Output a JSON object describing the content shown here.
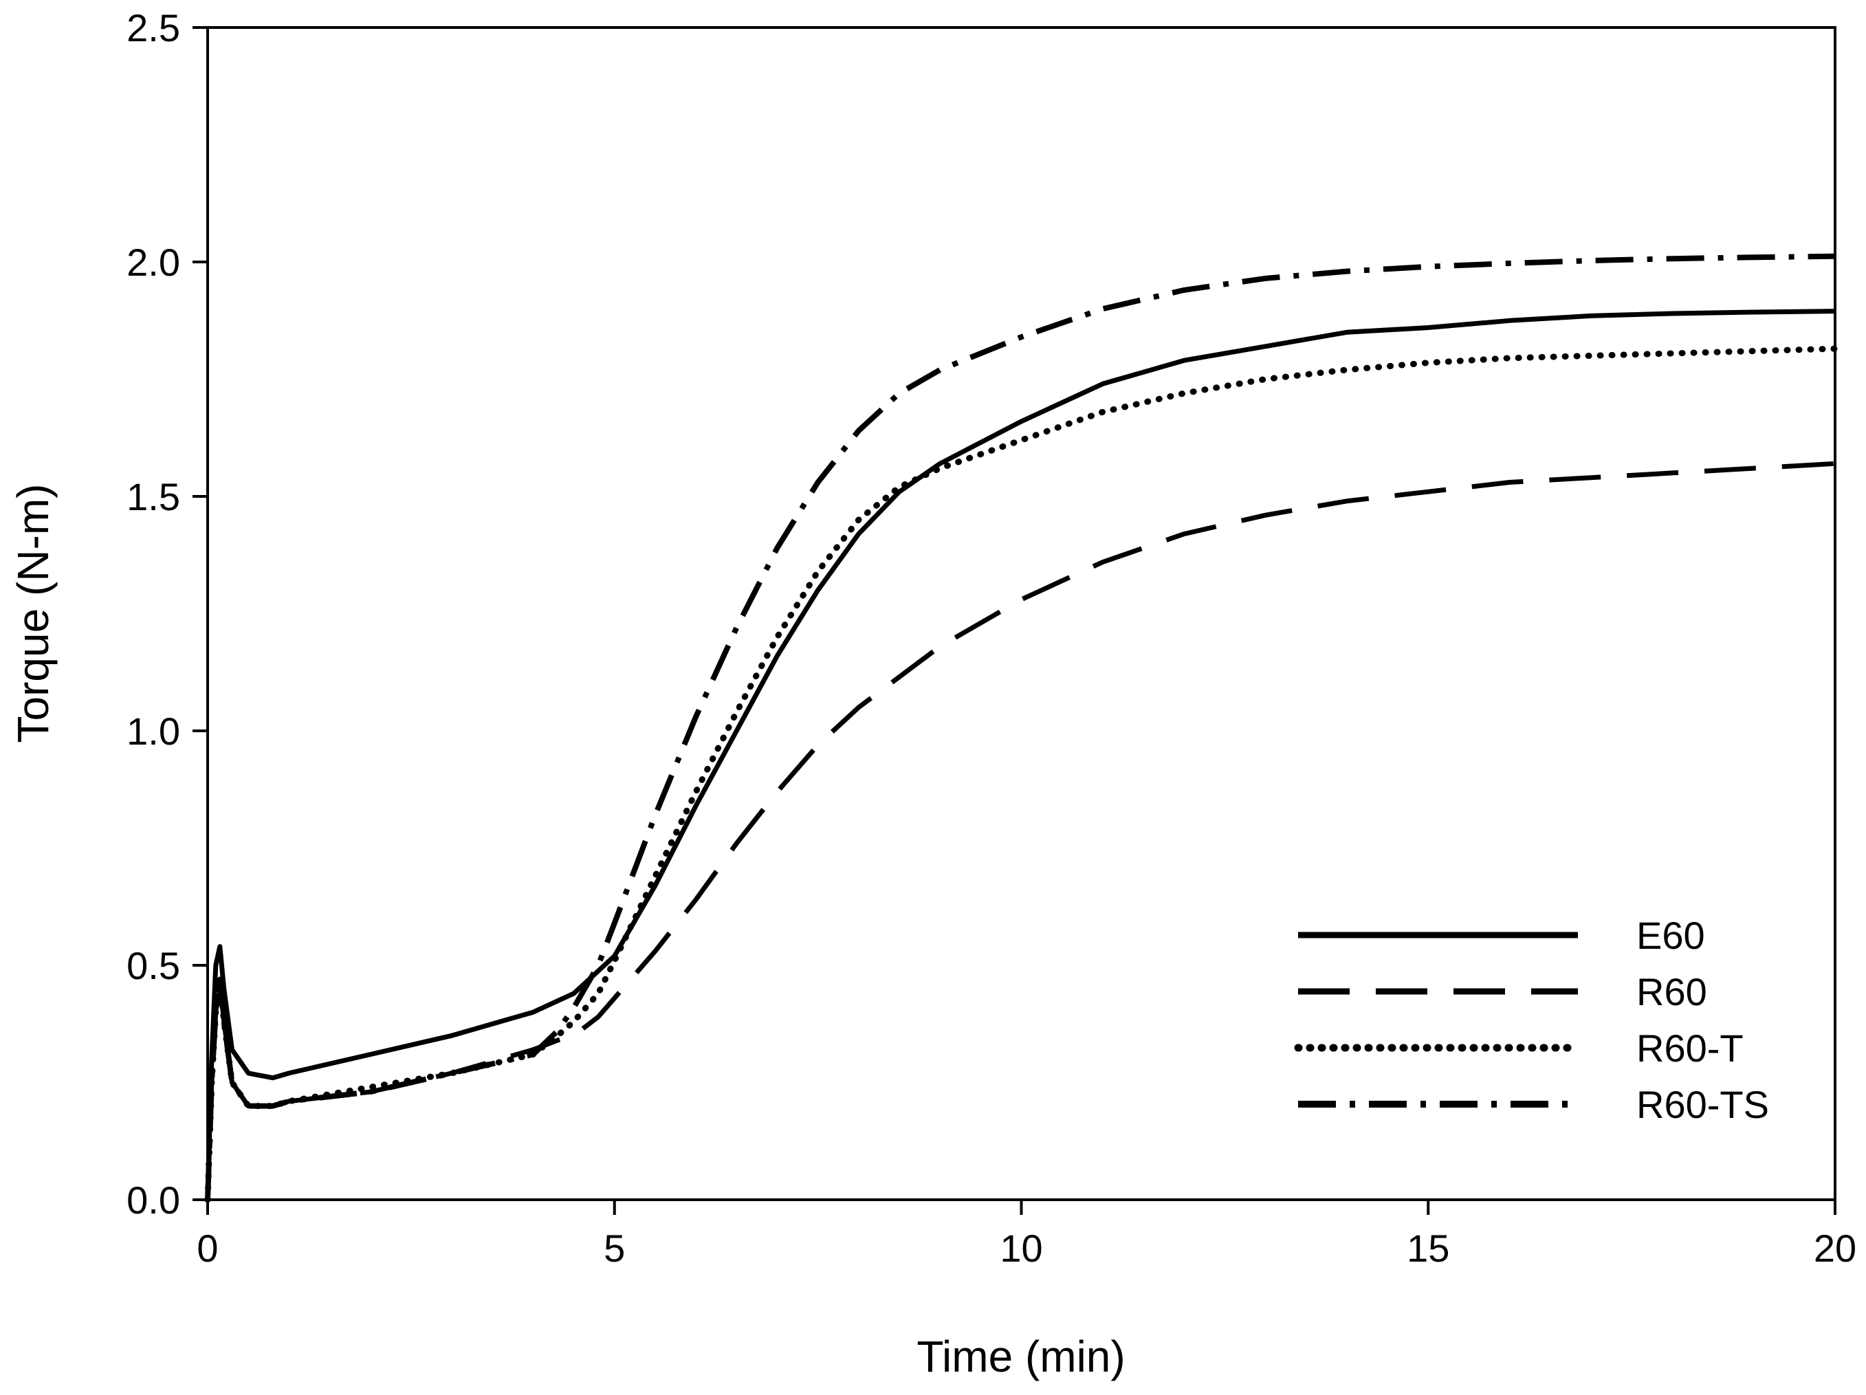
{
  "chart_data": {
    "type": "line",
    "title": "",
    "xlabel": "Time (min)",
    "ylabel": "Torque (N-m)",
    "xlim": [
      0,
      20
    ],
    "ylim": [
      0,
      2.5
    ],
    "xticks": [
      0,
      5,
      10,
      15,
      20
    ],
    "xtick_labels": [
      "0",
      "5",
      "10",
      "15",
      "20"
    ],
    "yticks": [
      0,
      0.5,
      1.0,
      1.5,
      2.0,
      2.5
    ],
    "ytick_labels": [
      "0.0",
      "0.5",
      "1.0",
      "1.5",
      "2.0",
      "2.5"
    ],
    "grid": false,
    "legend_position": "bottom-right",
    "series": [
      {
        "name": "E60",
        "style": "solid",
        "x": [
          0,
          0.05,
          0.1,
          0.15,
          0.2,
          0.3,
          0.5,
          0.8,
          1,
          2,
          3,
          4,
          4.5,
          5,
          5.5,
          6,
          6.5,
          7,
          7.5,
          8,
          8.5,
          9,
          10,
          11,
          12,
          13,
          14,
          15,
          16,
          17,
          18,
          19,
          20
        ],
        "y": [
          0.0,
          0.3,
          0.5,
          0.54,
          0.45,
          0.32,
          0.27,
          0.26,
          0.27,
          0.31,
          0.35,
          0.4,
          0.44,
          0.52,
          0.67,
          0.84,
          1.0,
          1.16,
          1.3,
          1.42,
          1.51,
          1.57,
          1.66,
          1.74,
          1.79,
          1.82,
          1.85,
          1.86,
          1.875,
          1.885,
          1.89,
          1.893,
          1.895
        ]
      },
      {
        "name": "R60",
        "style": "dashed",
        "x": [
          0,
          0.05,
          0.1,
          0.15,
          0.2,
          0.3,
          0.5,
          0.8,
          1,
          2,
          3,
          4,
          4.3,
          4.5,
          4.8,
          5,
          5.5,
          6,
          6.5,
          7,
          7.5,
          8,
          9,
          10,
          11,
          12,
          13,
          14,
          15,
          16,
          17,
          18,
          19,
          20
        ],
        "y": [
          0.0,
          0.25,
          0.4,
          0.47,
          0.38,
          0.25,
          0.2,
          0.2,
          0.21,
          0.23,
          0.27,
          0.32,
          0.34,
          0.35,
          0.39,
          0.43,
          0.53,
          0.64,
          0.76,
          0.87,
          0.97,
          1.05,
          1.18,
          1.28,
          1.36,
          1.42,
          1.46,
          1.49,
          1.51,
          1.53,
          1.54,
          1.55,
          1.56,
          1.57
        ]
      },
      {
        "name": "R60-T",
        "style": "dotted",
        "x": [
          0,
          0.05,
          0.1,
          0.15,
          0.2,
          0.3,
          0.5,
          0.8,
          1,
          2,
          3,
          4,
          4.3,
          4.5,
          4.8,
          5,
          5.5,
          6,
          6.5,
          7,
          7.5,
          8,
          8.5,
          9,
          10,
          11,
          12,
          13,
          14,
          15,
          16,
          17,
          18,
          19,
          20
        ],
        "y": [
          0.0,
          0.25,
          0.4,
          0.47,
          0.38,
          0.25,
          0.2,
          0.2,
          0.21,
          0.24,
          0.27,
          0.31,
          0.35,
          0.38,
          0.44,
          0.51,
          0.69,
          0.87,
          1.04,
          1.2,
          1.34,
          1.45,
          1.52,
          1.56,
          1.62,
          1.68,
          1.72,
          1.75,
          1.77,
          1.785,
          1.795,
          1.8,
          1.805,
          1.81,
          1.815
        ]
      },
      {
        "name": "R60-TS",
        "style": "dash-dot",
        "x": [
          0,
          0.05,
          0.1,
          0.15,
          0.2,
          0.3,
          0.5,
          0.8,
          1,
          2,
          3,
          4,
          4.3,
          4.5,
          4.8,
          5,
          5.5,
          6,
          6.5,
          7,
          7.5,
          8,
          8.5,
          9,
          10,
          11,
          12,
          13,
          14,
          15,
          16,
          17,
          18,
          19,
          20
        ],
        "y": [
          0.0,
          0.25,
          0.4,
          0.47,
          0.38,
          0.25,
          0.2,
          0.2,
          0.21,
          0.23,
          0.27,
          0.31,
          0.36,
          0.41,
          0.5,
          0.59,
          0.82,
          1.03,
          1.22,
          1.39,
          1.53,
          1.64,
          1.72,
          1.77,
          1.84,
          1.9,
          1.94,
          1.965,
          1.98,
          1.99,
          1.997,
          2.003,
          2.007,
          2.01,
          2.012
        ]
      }
    ]
  },
  "colors": {
    "line": "#000000",
    "axis": "#000000",
    "background": "#ffffff"
  }
}
